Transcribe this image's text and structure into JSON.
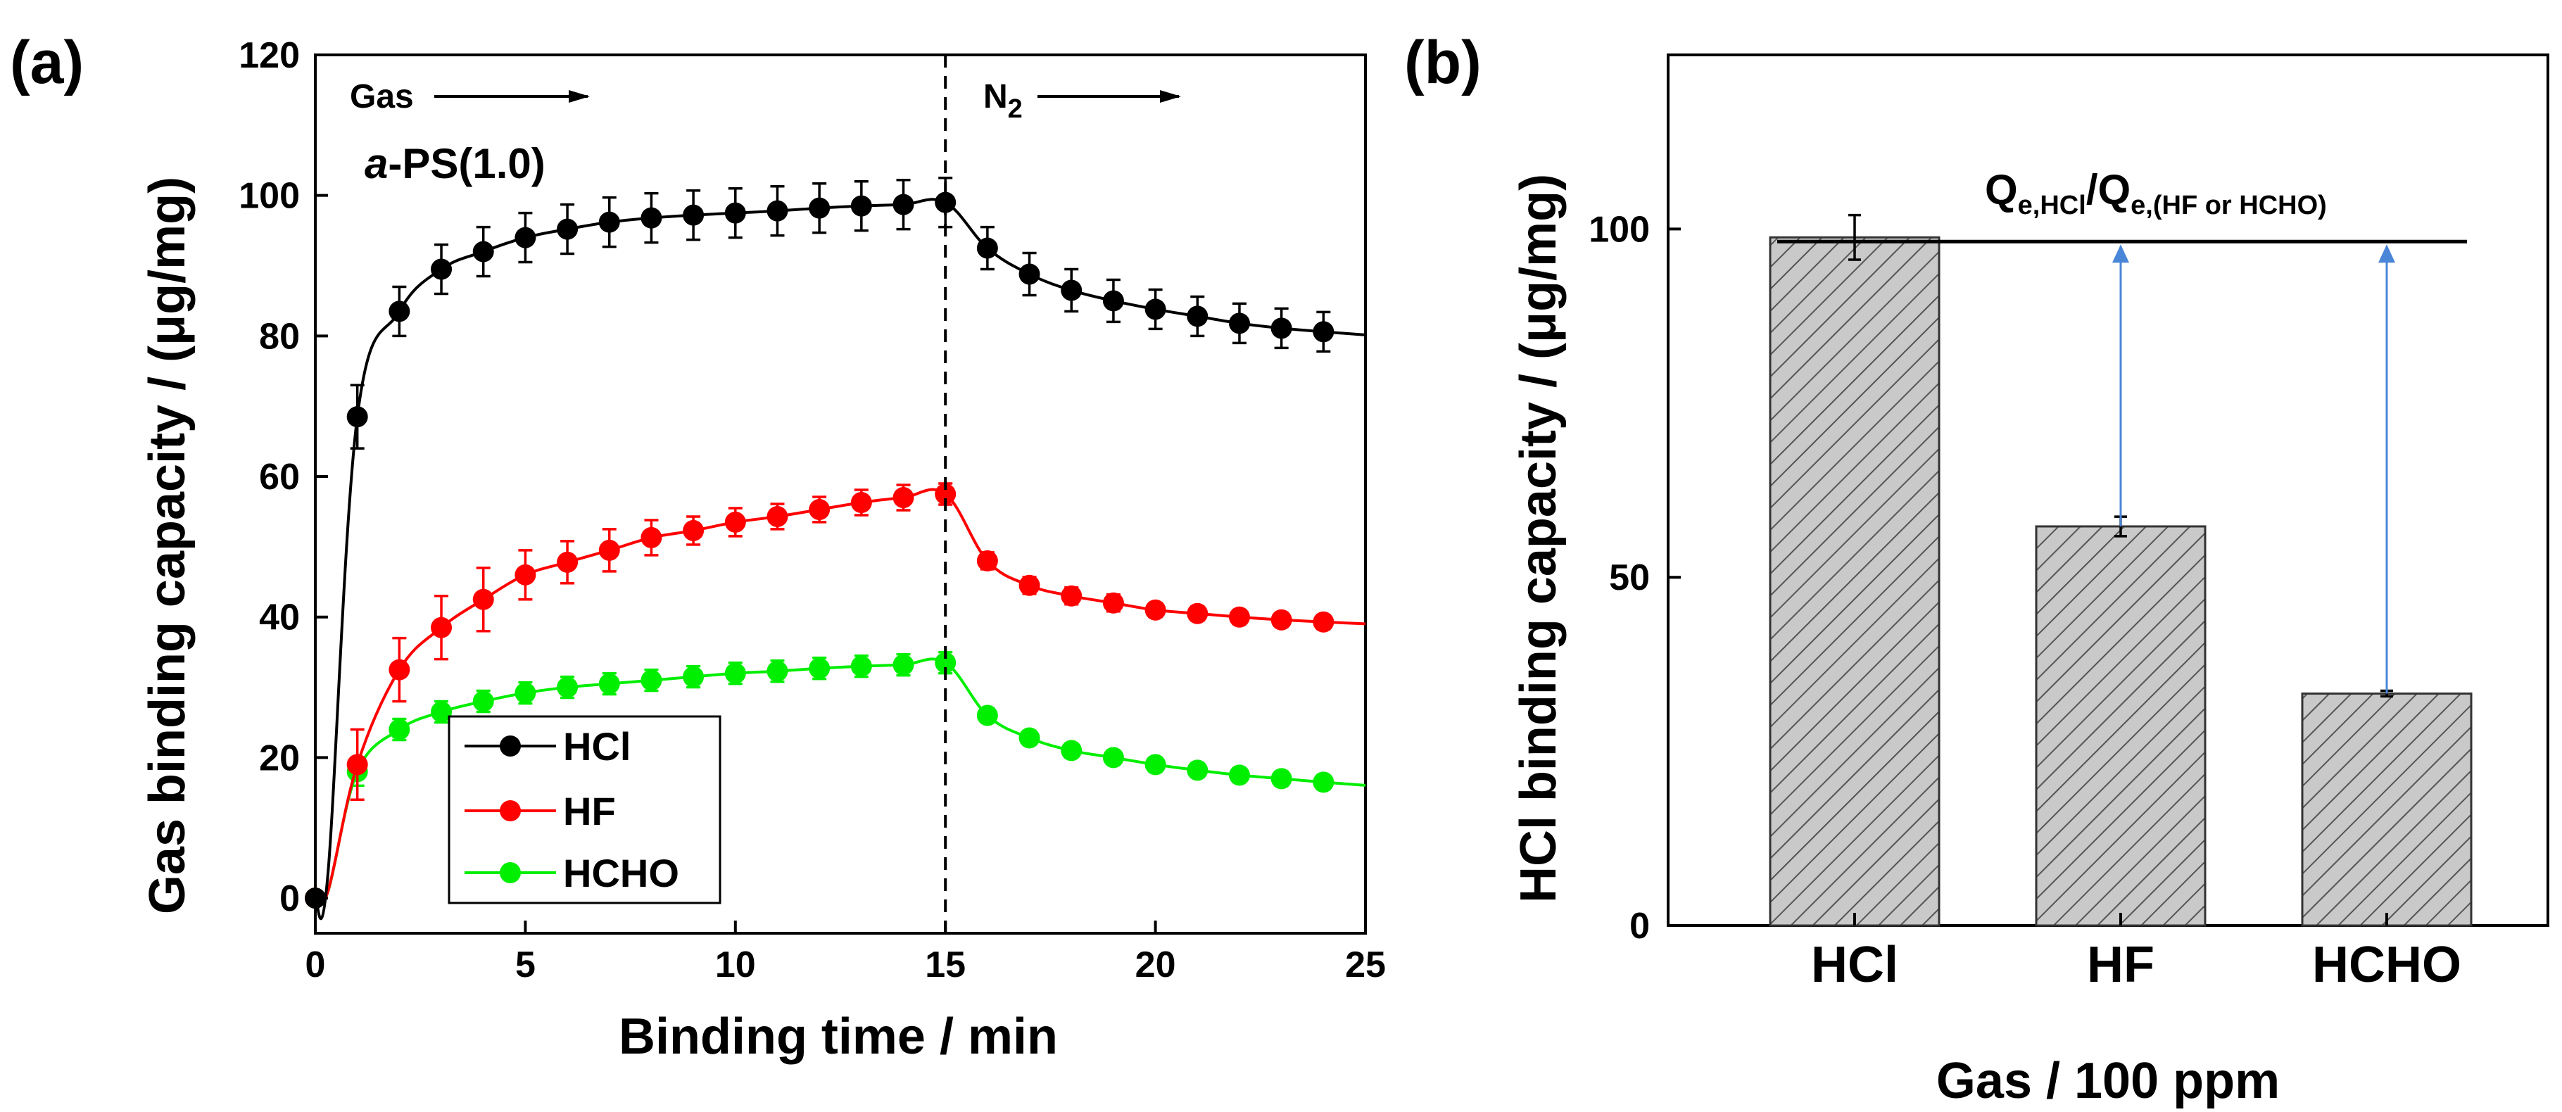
{
  "chart_data": [
    {
      "panel": "(a)",
      "type": "line",
      "xlabel": "Binding time / min",
      "ylabel": "Gas binding capacity / (μg/mg)",
      "xlim": [
        0,
        25
      ],
      "ylim": [
        -5,
        120
      ],
      "xticks": [
        0,
        5,
        10,
        15,
        20,
        25
      ],
      "yticks": [
        0,
        20,
        40,
        60,
        80,
        100,
        120
      ],
      "annotations": {
        "gas_label": "Gas",
        "n2_label": "N",
        "n2_sub": "2",
        "sample_italic": "a",
        "sample_rest": "-PS(1.0)",
        "switch_time": 15
      },
      "legend": {
        "position": "bottom-left",
        "entries": [
          "HCl",
          "HF",
          "HCHO"
        ]
      },
      "series": [
        {
          "name": "HCl",
          "color": "#000000",
          "x": [
            0,
            1,
            2,
            3,
            4,
            5,
            6,
            7,
            8,
            9,
            10,
            11,
            12,
            13,
            14,
            15,
            16,
            17,
            18,
            19,
            20,
            21,
            22,
            23,
            24
          ],
          "values": [
            0,
            68.5,
            83.5,
            89.5,
            92,
            94,
            95.2,
            96.2,
            96.8,
            97.2,
            97.5,
            97.8,
            98.2,
            98.5,
            98.7,
            99,
            92.5,
            88.8,
            86.5,
            85,
            83.8,
            82.8,
            81.8,
            81.1,
            80.6
          ],
          "errors": [
            0,
            4.5,
            3.5,
            3.5,
            3.5,
            3.5,
            3.5,
            3.5,
            3.5,
            3.5,
            3.5,
            3.5,
            3.5,
            3.5,
            3.5,
            3.5,
            3,
            3,
            3,
            3,
            2.8,
            2.8,
            2.8,
            2.8,
            2.8
          ]
        },
        {
          "name": "HF",
          "color": "#ff0000",
          "x": [
            0,
            1,
            2,
            3,
            4,
            5,
            6,
            7,
            8,
            9,
            10,
            11,
            12,
            13,
            14,
            15,
            16,
            17,
            18,
            19,
            20,
            21,
            22,
            23,
            24
          ],
          "values": [
            0,
            19,
            32.5,
            38.5,
            42.5,
            46,
            47.8,
            49.5,
            51.3,
            52.3,
            53.5,
            54.3,
            55.3,
            56.3,
            57,
            57.5,
            48,
            44.5,
            43,
            42,
            41,
            40.5,
            40,
            39.6,
            39.3
          ],
          "errors": [
            0,
            5,
            4.5,
            4.5,
            4.5,
            3.5,
            3,
            3,
            2.5,
            2,
            2,
            1.8,
            1.8,
            1.8,
            1.8,
            1.5,
            1.2,
            1.2,
            1.2,
            1.2,
            1,
            1,
            1,
            1,
            1
          ]
        },
        {
          "name": "HCHO",
          "color": "#00ee00",
          "x": [
            0,
            1,
            2,
            3,
            4,
            5,
            6,
            7,
            8,
            9,
            10,
            11,
            12,
            13,
            14,
            15,
            16,
            17,
            18,
            19,
            20,
            21,
            22,
            23,
            24
          ],
          "values": [
            0,
            18,
            24,
            26.5,
            28,
            29.2,
            30,
            30.5,
            31,
            31.5,
            32,
            32.3,
            32.7,
            33,
            33.2,
            33.5,
            26,
            22.8,
            21,
            20,
            19,
            18.2,
            17.5,
            17,
            16.5
          ],
          "errors": [
            0,
            2,
            1.5,
            1.5,
            1.5,
            1.5,
            1.5,
            1.5,
            1.5,
            1.5,
            1.5,
            1.5,
            1.5,
            1.5,
            1.5,
            1.5,
            1,
            1,
            1,
            1,
            1,
            1,
            1,
            1,
            1
          ]
        }
      ]
    },
    {
      "panel": "(b)",
      "type": "bar",
      "xlabel": "Gas / 100 ppm",
      "ylabel": "HCl binding capacity / (μg/mg)",
      "ylim": [
        0,
        125
      ],
      "yticks": [
        0,
        50,
        100
      ],
      "categories": [
        "HCl",
        "HF",
        "HCHO"
      ],
      "values": [
        98.8,
        57.3,
        33.3
      ],
      "errors": [
        3.2,
        1.4,
        0.4
      ],
      "bar_color": "#c8c8c8",
      "arrow_color": "#4a86d8",
      "reference_value": 98.2,
      "annotation": {
        "q1": "Q",
        "q1_sub": "e,HCl",
        "slash": "/",
        "q2": "Q",
        "q2_sub": "e,(HF or HCHO)"
      }
    }
  ]
}
